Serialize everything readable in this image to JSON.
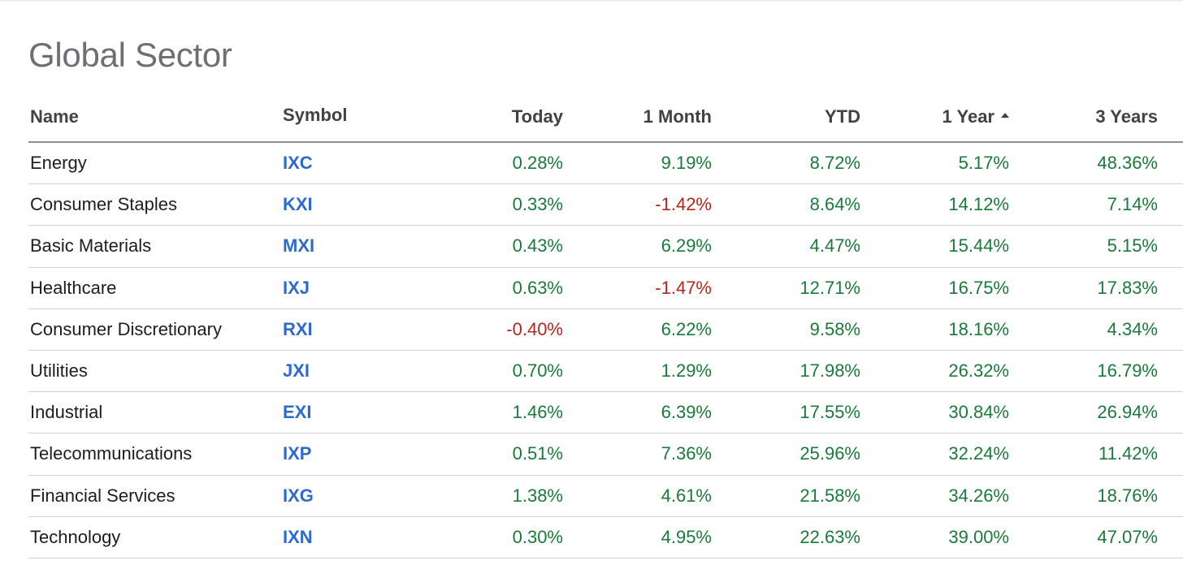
{
  "title": "Global Sector",
  "colors": {
    "positive": "#1a7a3a",
    "negative": "#b3261e",
    "symbol_link": "#2d6ad0"
  },
  "columns": {
    "name": "Name",
    "symbol": "Symbol",
    "today": "Today",
    "month": "1 Month",
    "ytd": "YTD",
    "year1": "1 Year",
    "year3": "3 Years",
    "sort_icon": "sort-ascending-icon"
  },
  "rows": [
    {
      "name": "Energy",
      "symbol": "IXC",
      "today": "0.28%",
      "month": "9.19%",
      "ytd": "8.72%",
      "year1": "5.17%",
      "year3": "48.36%"
    },
    {
      "name": "Consumer Staples",
      "symbol": "KXI",
      "today": "0.33%",
      "month": "-1.42%",
      "ytd": "8.64%",
      "year1": "14.12%",
      "year3": "7.14%"
    },
    {
      "name": "Basic Materials",
      "symbol": "MXI",
      "today": "0.43%",
      "month": "6.29%",
      "ytd": "4.47%",
      "year1": "15.44%",
      "year3": "5.15%"
    },
    {
      "name": "Healthcare",
      "symbol": "IXJ",
      "today": "0.63%",
      "month": "-1.47%",
      "ytd": "12.71%",
      "year1": "16.75%",
      "year3": "17.83%"
    },
    {
      "name": "Consumer Discretionary",
      "symbol": "RXI",
      "today": "-0.40%",
      "month": "6.22%",
      "ytd": "9.58%",
      "year1": "18.16%",
      "year3": "4.34%"
    },
    {
      "name": "Utilities",
      "symbol": "JXI",
      "today": "0.70%",
      "month": "1.29%",
      "ytd": "17.98%",
      "year1": "26.32%",
      "year3": "16.79%"
    },
    {
      "name": "Industrial",
      "symbol": "EXI",
      "today": "1.46%",
      "month": "6.39%",
      "ytd": "17.55%",
      "year1": "30.84%",
      "year3": "26.94%"
    },
    {
      "name": "Telecommunications",
      "symbol": "IXP",
      "today": "0.51%",
      "month": "7.36%",
      "ytd": "25.96%",
      "year1": "32.24%",
      "year3": "11.42%"
    },
    {
      "name": "Financial Services",
      "symbol": "IXG",
      "today": "1.38%",
      "month": "4.61%",
      "ytd": "21.58%",
      "year1": "34.26%",
      "year3": "18.76%"
    },
    {
      "name": "Technology",
      "symbol": "IXN",
      "today": "0.30%",
      "month": "4.95%",
      "ytd": "22.63%",
      "year1": "39.00%",
      "year3": "47.07%"
    }
  ]
}
